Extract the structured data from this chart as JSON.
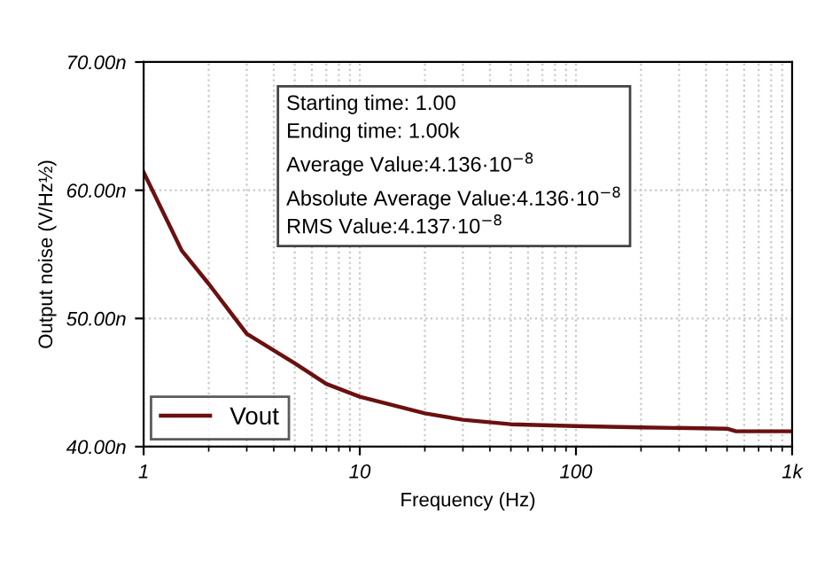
{
  "chart_data": {
    "type": "line",
    "xlabel": "Frequency (Hz)",
    "ylabel": "Output noise (V/Hz½)",
    "x": [
      1,
      1.5,
      2,
      3,
      5,
      7,
      10,
      20,
      30,
      50,
      100,
      200,
      500,
      550,
      1000
    ],
    "series": [
      {
        "name": "Vout",
        "color": "#6b1010",
        "values": [
          61.4,
          55.3,
          52.7,
          48.8,
          46.5,
          44.9,
          43.9,
          42.6,
          42.1,
          41.75,
          41.6,
          41.5,
          41.4,
          41.2,
          41.2
        ]
      }
    ],
    "log": "x",
    "xlim": [
      1,
      1000
    ],
    "xticks": [
      1,
      10,
      100,
      {
        "value": 1000,
        "label": "1k"
      }
    ],
    "ylim": [
      40,
      70
    ],
    "yticks": [
      {
        "value": 40,
        "label": "40.00n"
      },
      {
        "value": 50,
        "label": "50.00n"
      },
      {
        "value": 60,
        "label": "60.00n"
      },
      {
        "value": 70,
        "label": "70.00n"
      }
    ],
    "grid": true,
    "legend": "bottom left",
    "marker": "none",
    "line_style": "solid",
    "annotations": [
      "Starting time: 1.00",
      "Ending time: 1.00k",
      "Average Value:4.136·10$^{−8}$",
      "Absolute Average Value:4.136·10$^{−8}$",
      "RMS Value:4.137·10$^{−8}$"
    ]
  }
}
